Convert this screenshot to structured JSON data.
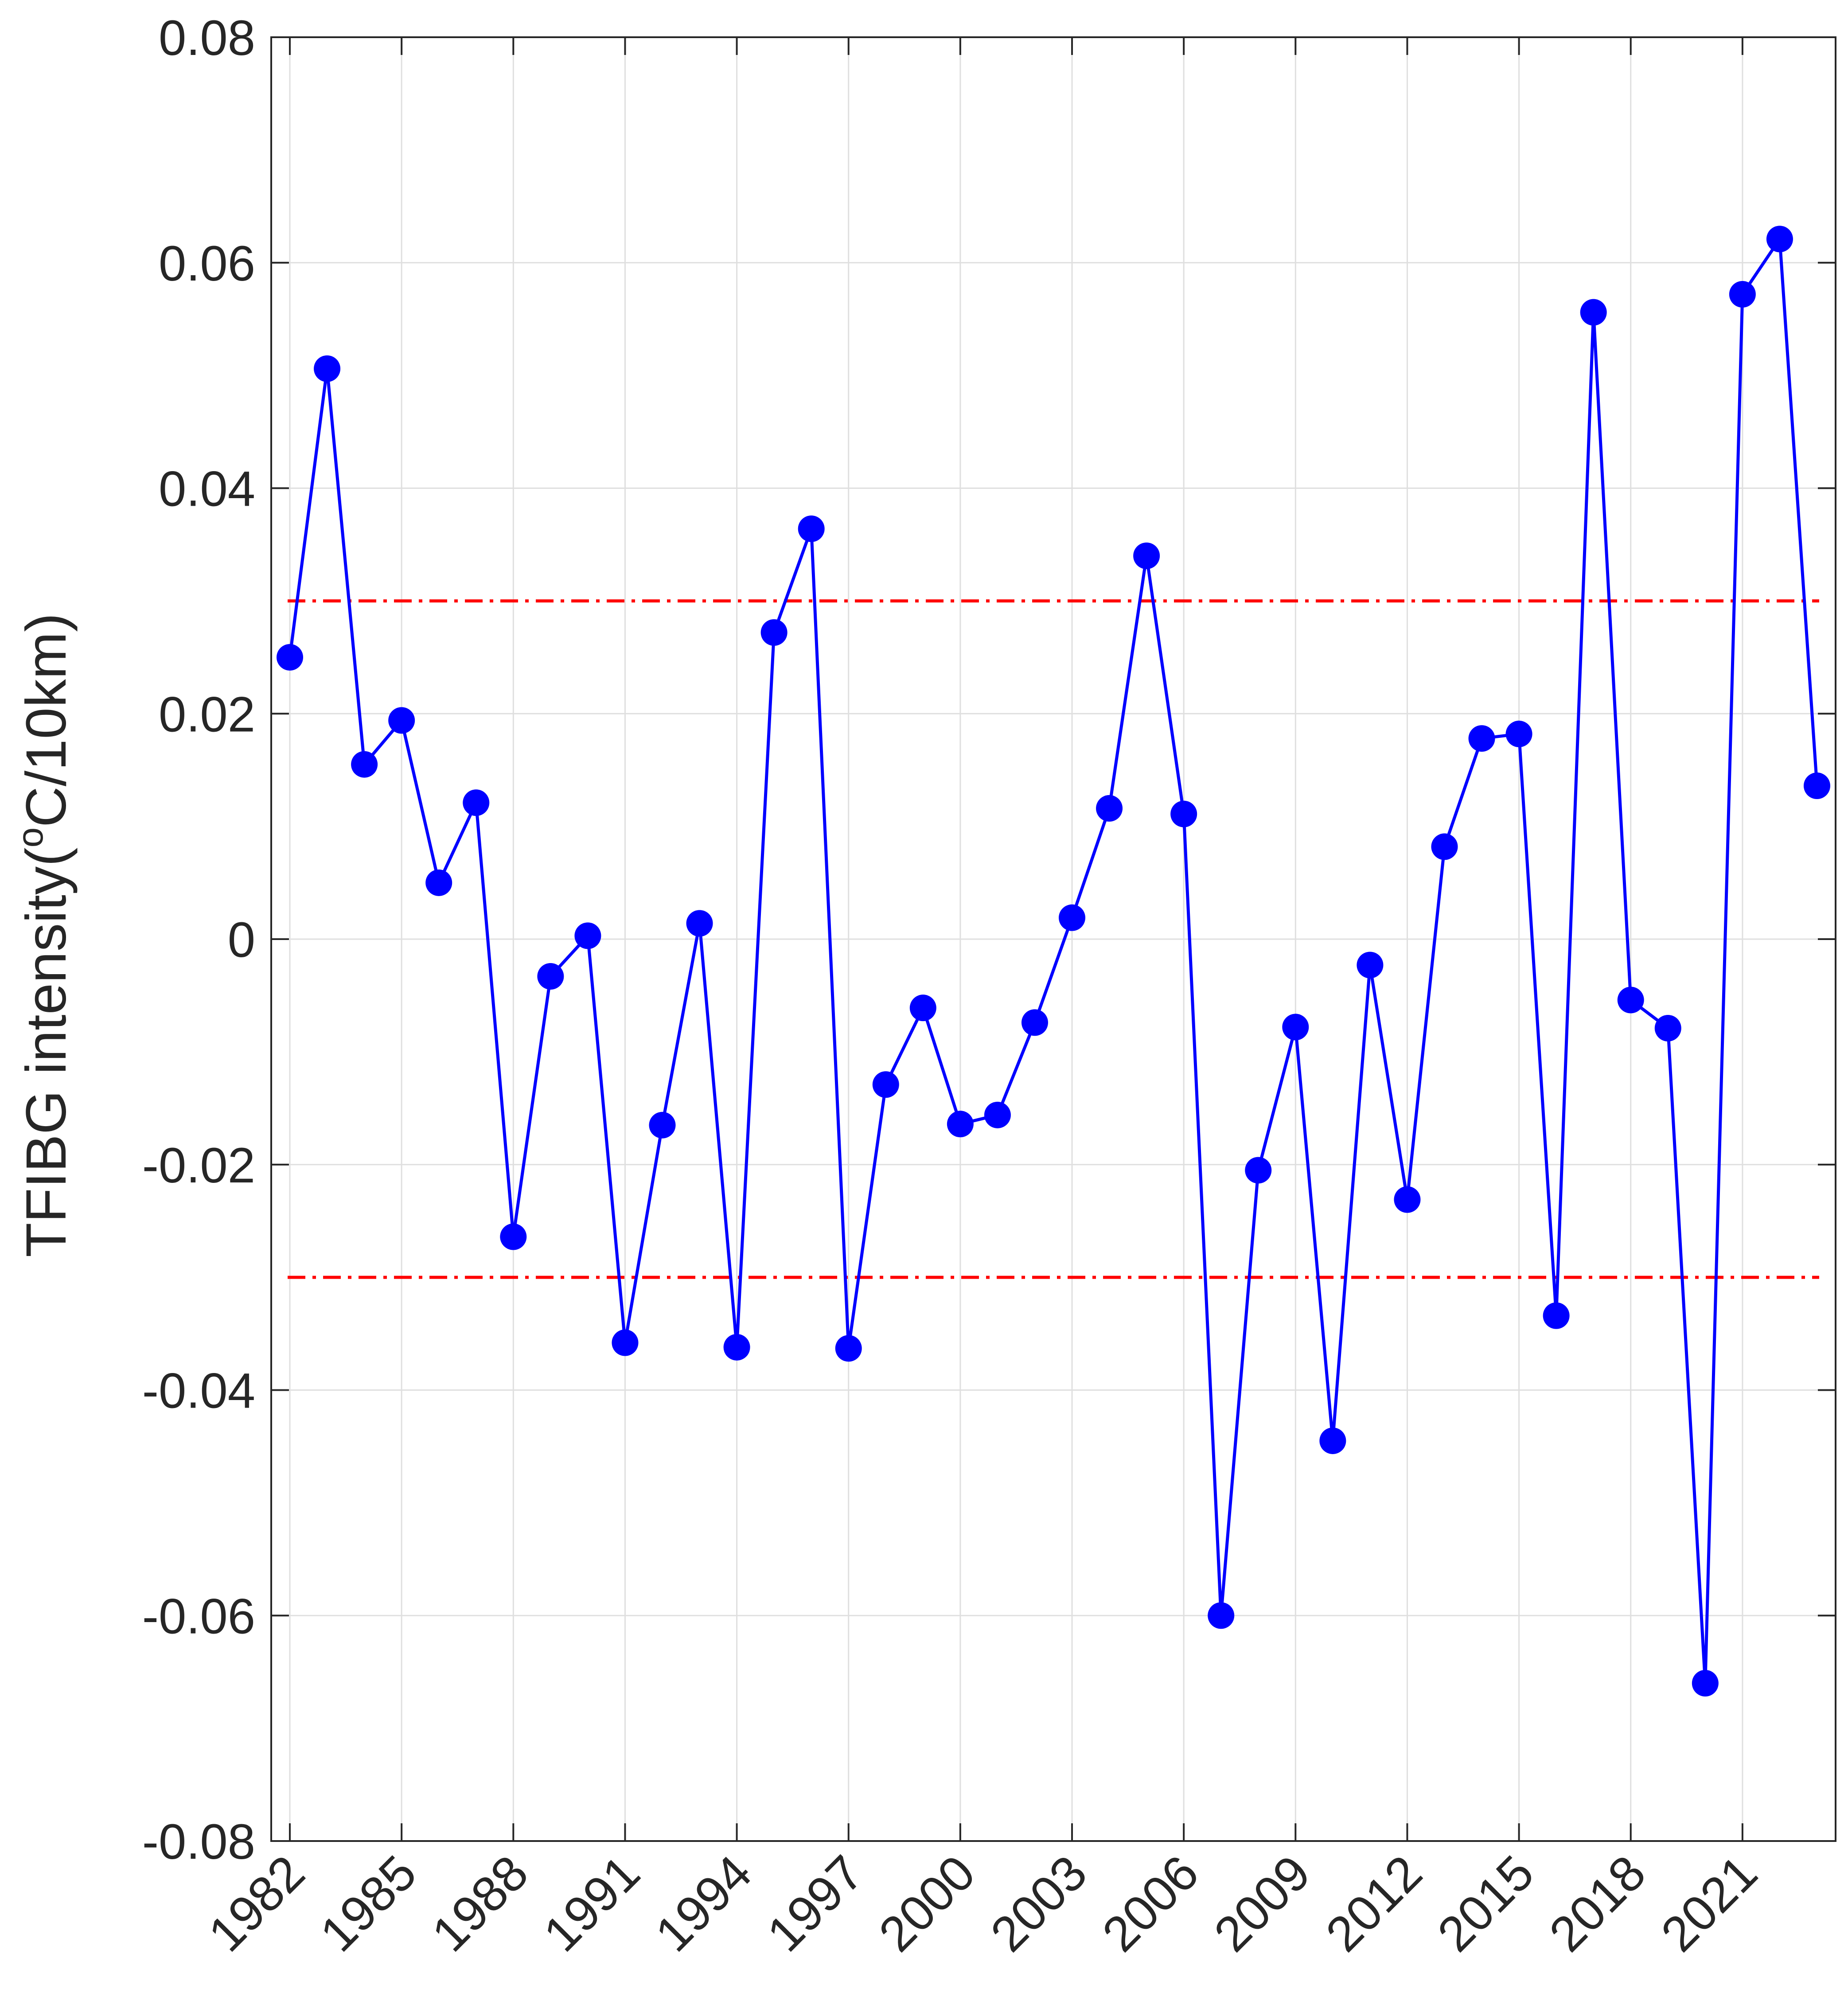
{
  "chart_data": {
    "type": "line",
    "title": "",
    "xlabel": "",
    "ylabel": {
      "prefix": "TFIBG intensity(",
      "sup": "o",
      "suffix": "C/10km)"
    },
    "ylim": [
      -0.08,
      0.08
    ],
    "xlim": [
      1981.5,
      2023.5
    ],
    "y_ticks": [
      -0.08,
      -0.06,
      -0.04,
      -0.02,
      0,
      0.02,
      0.04,
      0.06,
      0.08
    ],
    "y_tick_labels": [
      "-0.08",
      "-0.06",
      "-0.04",
      "-0.02",
      "0",
      "0.02",
      "0.04",
      "0.06",
      "0.08"
    ],
    "x_ticks": [
      1982,
      1985,
      1988,
      1991,
      1994,
      1997,
      2000,
      2003,
      2006,
      2009,
      2012,
      2015,
      2018,
      2021
    ],
    "x_tick_labels": [
      "1982",
      "1985",
      "1988",
      "1991",
      "1994",
      "1997",
      "2000",
      "2003",
      "2006",
      "2009",
      "2012",
      "2015",
      "2018",
      "2021"
    ],
    "grid": true,
    "series": [
      {
        "color": "#0000ff",
        "marker": "filled-circle",
        "x": [
          1982,
          1983,
          1984,
          1985,
          1986,
          1987,
          1988,
          1989,
          1990,
          1991,
          1992,
          1993,
          1994,
          1995,
          1996,
          1997,
          1998,
          1999,
          2000,
          2001,
          2002,
          2003,
          2004,
          2005,
          2006,
          2007,
          2008,
          2009,
          2010,
          2011,
          2012,
          2013,
          2014,
          2015,
          2016,
          2017,
          2018,
          2019,
          2020,
          2021,
          2022,
          2023
        ],
        "values": [
          0.025,
          0.0506,
          0.0155,
          0.0194,
          0.005,
          0.0121,
          -0.0264,
          -0.0033,
          0.0003,
          -0.0358,
          -0.0165,
          0.0014,
          -0.0362,
          0.0272,
          0.0364,
          -0.0363,
          -0.0129,
          -0.0061,
          -0.0164,
          -0.0156,
          -0.0074,
          0.0019,
          0.0116,
          0.034,
          0.0111,
          -0.06,
          -0.0205,
          -0.0078,
          -0.0445,
          -0.0023,
          -0.0231,
          0.0082,
          0.0178,
          0.0182,
          -0.0334,
          0.0556,
          -0.0054,
          -0.0079,
          -0.066,
          0.0572,
          0.0621,
          0.0136
        ]
      }
    ],
    "reference_lines": [
      {
        "y": 0.03,
        "color": "#ff0000",
        "style": "dash-dot"
      },
      {
        "y": -0.03,
        "color": "#ff0000",
        "style": "dash-dot"
      }
    ],
    "colors": {
      "axis": "#262626",
      "grid": "#dfdfdf"
    }
  }
}
